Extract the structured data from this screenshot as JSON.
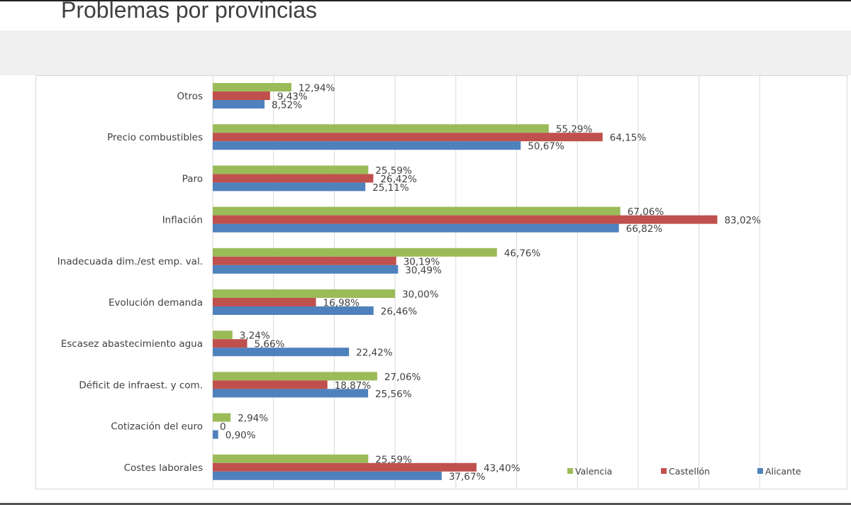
{
  "page": {
    "title": "Problemas por provincias"
  },
  "chart_data": {
    "type": "bar",
    "orientation": "horizontal",
    "title": "Problemas por provincias",
    "xlabel": "",
    "ylabel": "",
    "xlim": [
      0,
      90
    ],
    "grid": true,
    "grid_step": 10,
    "legend_position": "bottom-right",
    "categories": [
      "Otros",
      "Precio combustibles",
      "Paro",
      "Inflación",
      "Inadecuada dim./est emp. val.",
      "Evolución demanda",
      "Escasez abastecimiento agua",
      "Déficit de infraest. y com.",
      "Cotización del euro",
      "Costes laborales"
    ],
    "series": [
      {
        "name": "Valencia",
        "color": "#9bbb59",
        "values": [
          12.94,
          55.29,
          25.59,
          67.06,
          46.76,
          30.0,
          3.24,
          27.06,
          2.94,
          25.59
        ],
        "labels": [
          "12,94%",
          "55,29%",
          "25,59%",
          "67,06%",
          "46,76%",
          "30,00%",
          "3,24%",
          "27,06%",
          "2,94%",
          "25,59%"
        ]
      },
      {
        "name": "Castellón",
        "color": "#c0504d",
        "values": [
          9.43,
          64.15,
          26.42,
          83.02,
          30.19,
          16.98,
          5.66,
          18.87,
          0,
          43.4
        ],
        "labels": [
          "9,43%",
          "64,15%",
          "26,42%",
          "83,02%",
          "30,19%",
          "16,98%",
          "5,66%",
          "18,87%",
          "0",
          "43,40%"
        ]
      },
      {
        "name": "Alicante",
        "color": "#4f81bd",
        "values": [
          8.52,
          50.67,
          25.11,
          66.82,
          30.49,
          26.46,
          22.42,
          25.56,
          0.9,
          37.67
        ],
        "labels": [
          "8,52%",
          "50,67%",
          "25,11%",
          "66,82%",
          "30,49%",
          "26,46%",
          "22,42%",
          "25,56%",
          "0,90%",
          "37,67%"
        ]
      }
    ],
    "legend": [
      "Valencia",
      "Castellón",
      "Alicante"
    ]
  }
}
